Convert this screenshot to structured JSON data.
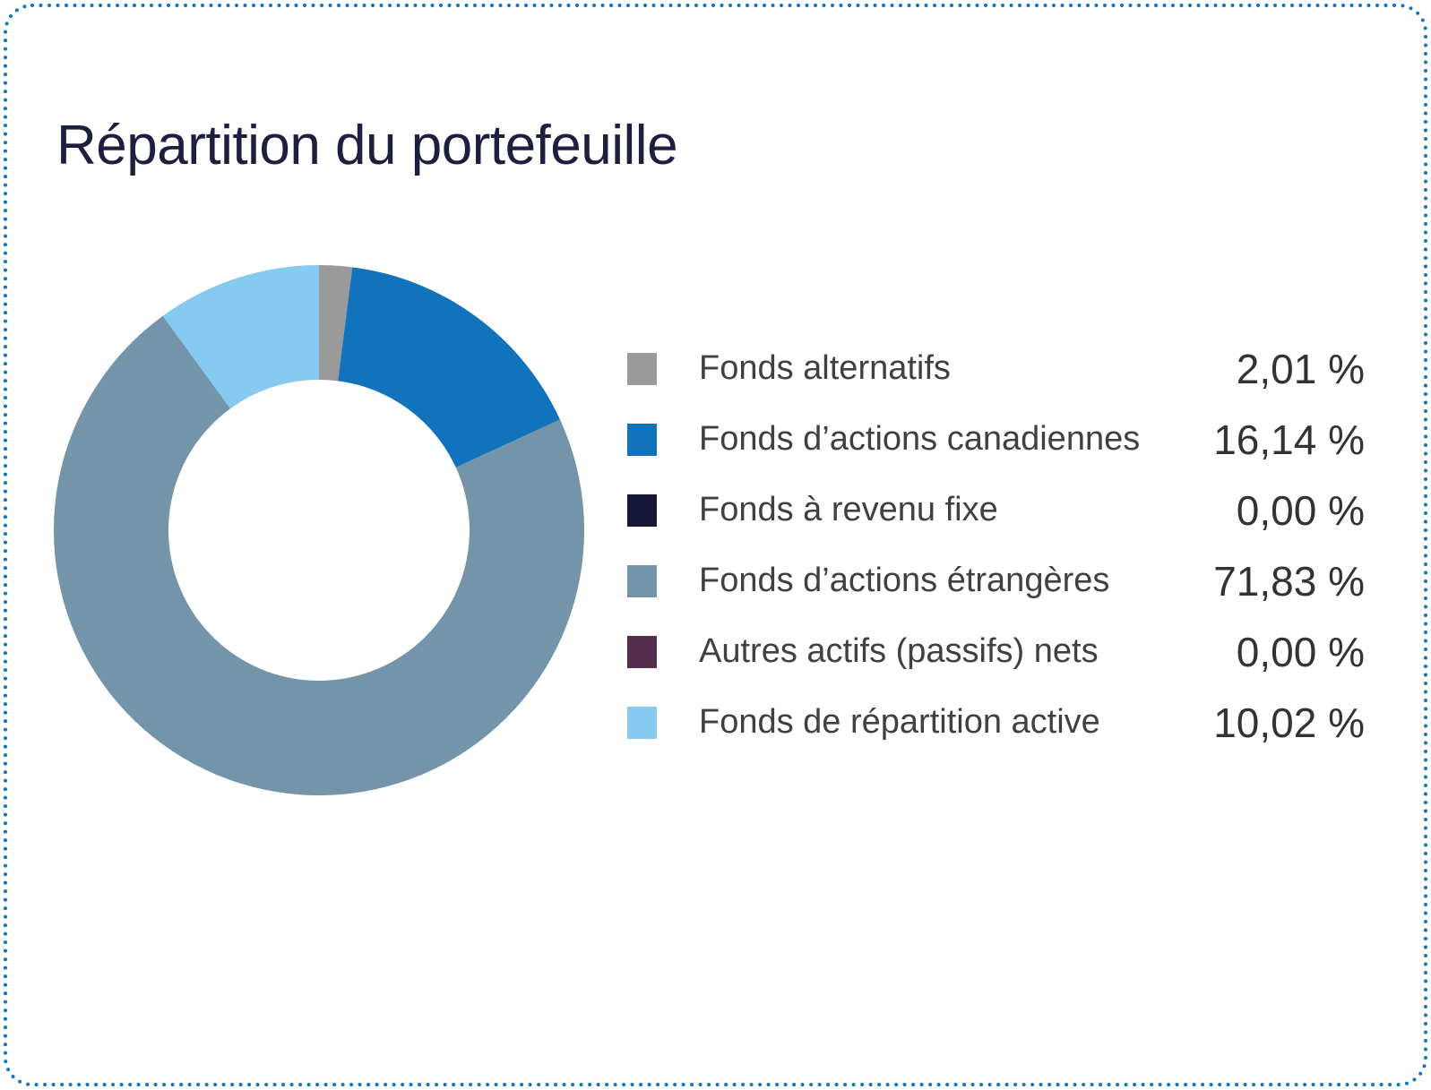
{
  "header": {
    "title": "Répartition du portefeuille"
  },
  "theme": {
    "border_color": "#1276BE",
    "title_color": "#1E1E3E",
    "label_color": "#404040",
    "value_color": "#333333",
    "background": "#FFFFFF"
  },
  "chart_data": {
    "type": "pie",
    "subtype": "donut",
    "title": "Répartition du portefeuille",
    "start_angle_deg": 0,
    "direction": "clockwise",
    "inner_radius_ratio": 0.568,
    "legend_position": "right",
    "value_suffix": "%",
    "items": [
      {
        "id": "fonds-alternatifs",
        "label": "Fonds alternatifs",
        "value": 2.01,
        "display": "2,01 %",
        "color": "#9A9A9A"
      },
      {
        "id": "fonds-actions-canadiennes",
        "label": "Fonds d’actions canadiennes",
        "value": 16.14,
        "display": "16,14 %",
        "color": "#1173BC"
      },
      {
        "id": "fonds-revenu-fixe",
        "label": "Fonds à revenu fixe",
        "value": 0.0,
        "display": "0,00 %",
        "color": "#161636"
      },
      {
        "id": "fonds-actions-etrangeres",
        "label": "Fonds d’actions étrangères",
        "value": 71.83,
        "display": "71,83 %",
        "color": "#7394A9"
      },
      {
        "id": "autres-actifs-passifs-nets",
        "label": "Autres actifs (passifs) nets",
        "value": 0.0,
        "display": "0,00 %",
        "color": "#532D4B"
      },
      {
        "id": "fonds-repartition-active",
        "label": "Fonds de répartition active",
        "value": 10.02,
        "display": "10,02 %",
        "color": "#84CAF1"
      }
    ]
  }
}
